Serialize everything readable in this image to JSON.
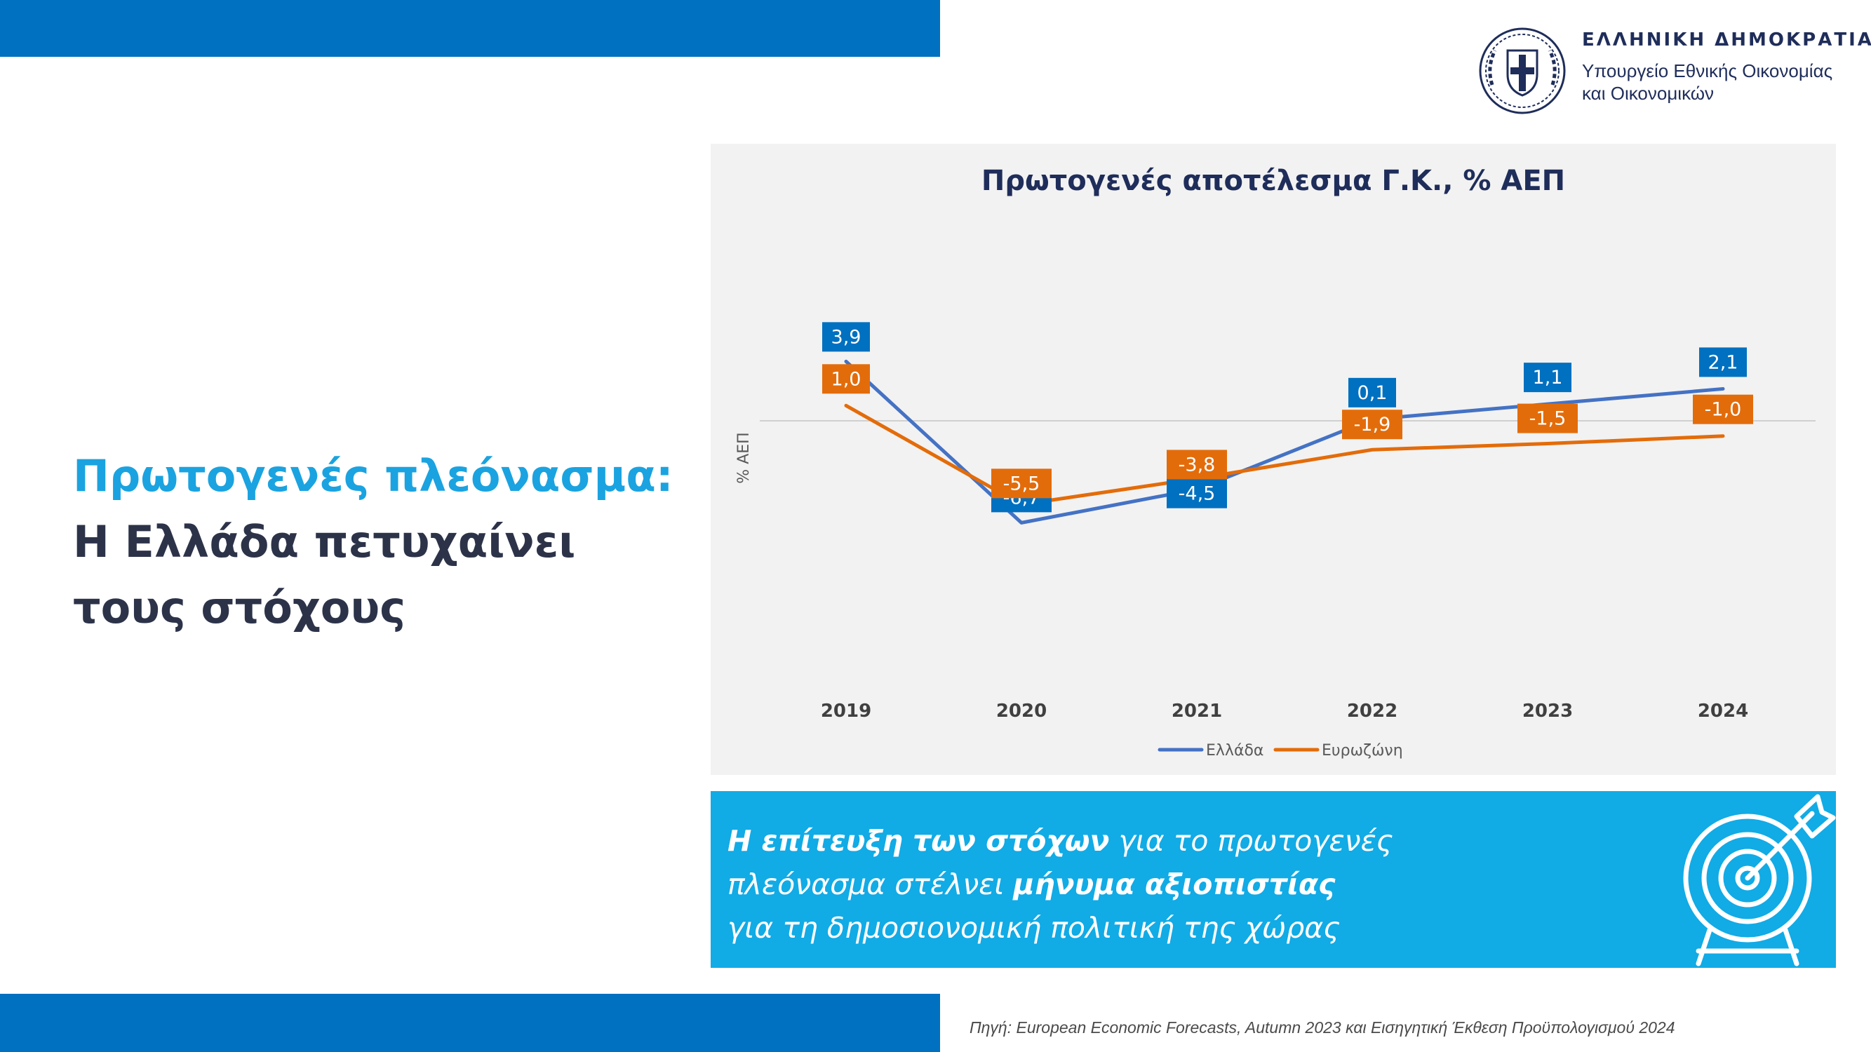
{
  "header": {
    "country": "ΕΛΛΗΝΙΚΗ ΔΗΜΟΚΡΑΤΙΑ",
    "ministry_line1": "Υπουργείο Εθνικής Οικονομίας",
    "ministry_line2": "και Οικονομικών"
  },
  "headline": {
    "line1": "Πρωτογενές πλεόνασμα:",
    "line2": "Η Ελλάδα πετυχαίνει",
    "line3": "τους στόχους"
  },
  "callout": {
    "l1_bold": "Η επίτευξη των στόχων",
    "l1_rest": " για το πρωτογενές",
    "l2_pre": "πλεόνασμα στέλνει ",
    "l2_bold": "μήνυμα αξιοπιστίας",
    "l3": "για τη δημοσιονομική πολιτική της χώρας"
  },
  "source": "Πηγή: European Economic Forecasts, Autumn 2023 και Εισηγητική Έκθεση Προϋπολογισμού 2024",
  "colors": {
    "greece": "#4472c4",
    "eurozone": "#e36c0a",
    "greece_label": "#0070c0",
    "eurozone_label": "#e36c0a",
    "accent_blue": "#0070c0",
    "callout_bg": "#11abe6"
  },
  "chart_data": {
    "type": "line",
    "title": "Πρωτογενές αποτέλεσμα Γ.Κ., % ΑΕΠ",
    "ylabel": "% ΑΕΠ",
    "xlabel": "",
    "categories": [
      "2019",
      "2020",
      "2021",
      "2022",
      "2023",
      "2024"
    ],
    "series": [
      {
        "name": "Ελλάδα",
        "values": [
          3.9,
          -6.7,
          -4.5,
          0.1,
          1.1,
          2.1
        ],
        "labels": [
          "3,9",
          "-6,7",
          "-4,5",
          "0,1",
          "1,1",
          "2,1"
        ]
      },
      {
        "name": "Ευρωζώνη",
        "values": [
          1.0,
          -5.5,
          -3.8,
          -1.9,
          -1.5,
          -1.0
        ],
        "labels": [
          "1,0",
          "-5,5",
          "-3,8",
          "-1,9",
          "-1,5",
          "-1,0"
        ]
      }
    ],
    "ylim": [
      -8,
      5
    ],
    "grid": false,
    "zero_line": true,
    "legend": "bottom-center"
  }
}
